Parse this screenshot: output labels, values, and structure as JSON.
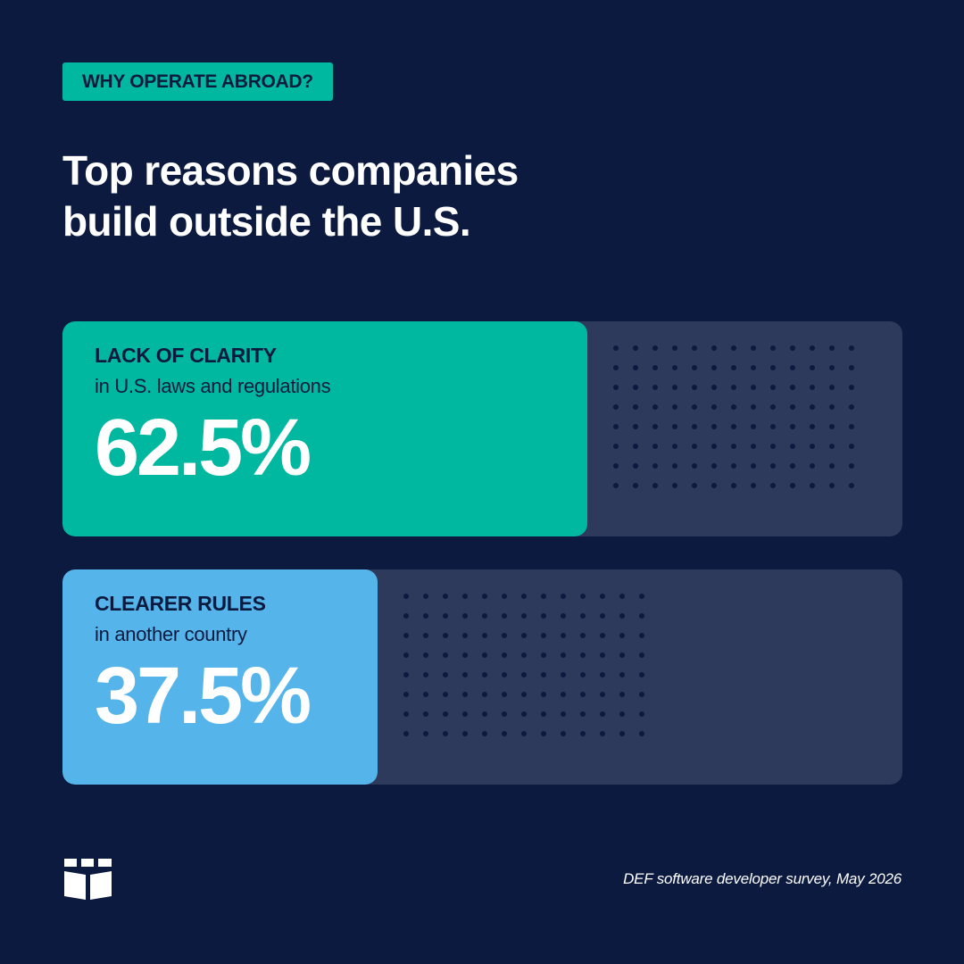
{
  "colors": {
    "background": "#0c1a40",
    "track": "#2e3a5c",
    "dots": "#0c1a40",
    "eyebrow_bg": "#00b8a0",
    "dark_text": "#0c1a40",
    "series": [
      "#00b8a0",
      "#55b5ea"
    ]
  },
  "eyebrow": "WHY OPERATE ABROAD?",
  "title_lines": [
    "Top reasons companies",
    "build outside the U.S."
  ],
  "chart_data": {
    "type": "bar",
    "orientation": "horizontal",
    "title": "Top reasons companies build outside the U.S.",
    "value_unit": "%",
    "xlim": [
      0,
      100
    ],
    "categories": [
      "LACK OF CLARITY",
      "CLEARER RULES"
    ],
    "sublabels": [
      "in U.S. laws and regulations",
      "in another country"
    ],
    "values": [
      62.5,
      37.5
    ],
    "value_labels": [
      "62.5%",
      "37.5%"
    ],
    "grid": false
  },
  "logo_icon": "open-book-logo-icon",
  "source": "DEF software developer survey, May 2026"
}
